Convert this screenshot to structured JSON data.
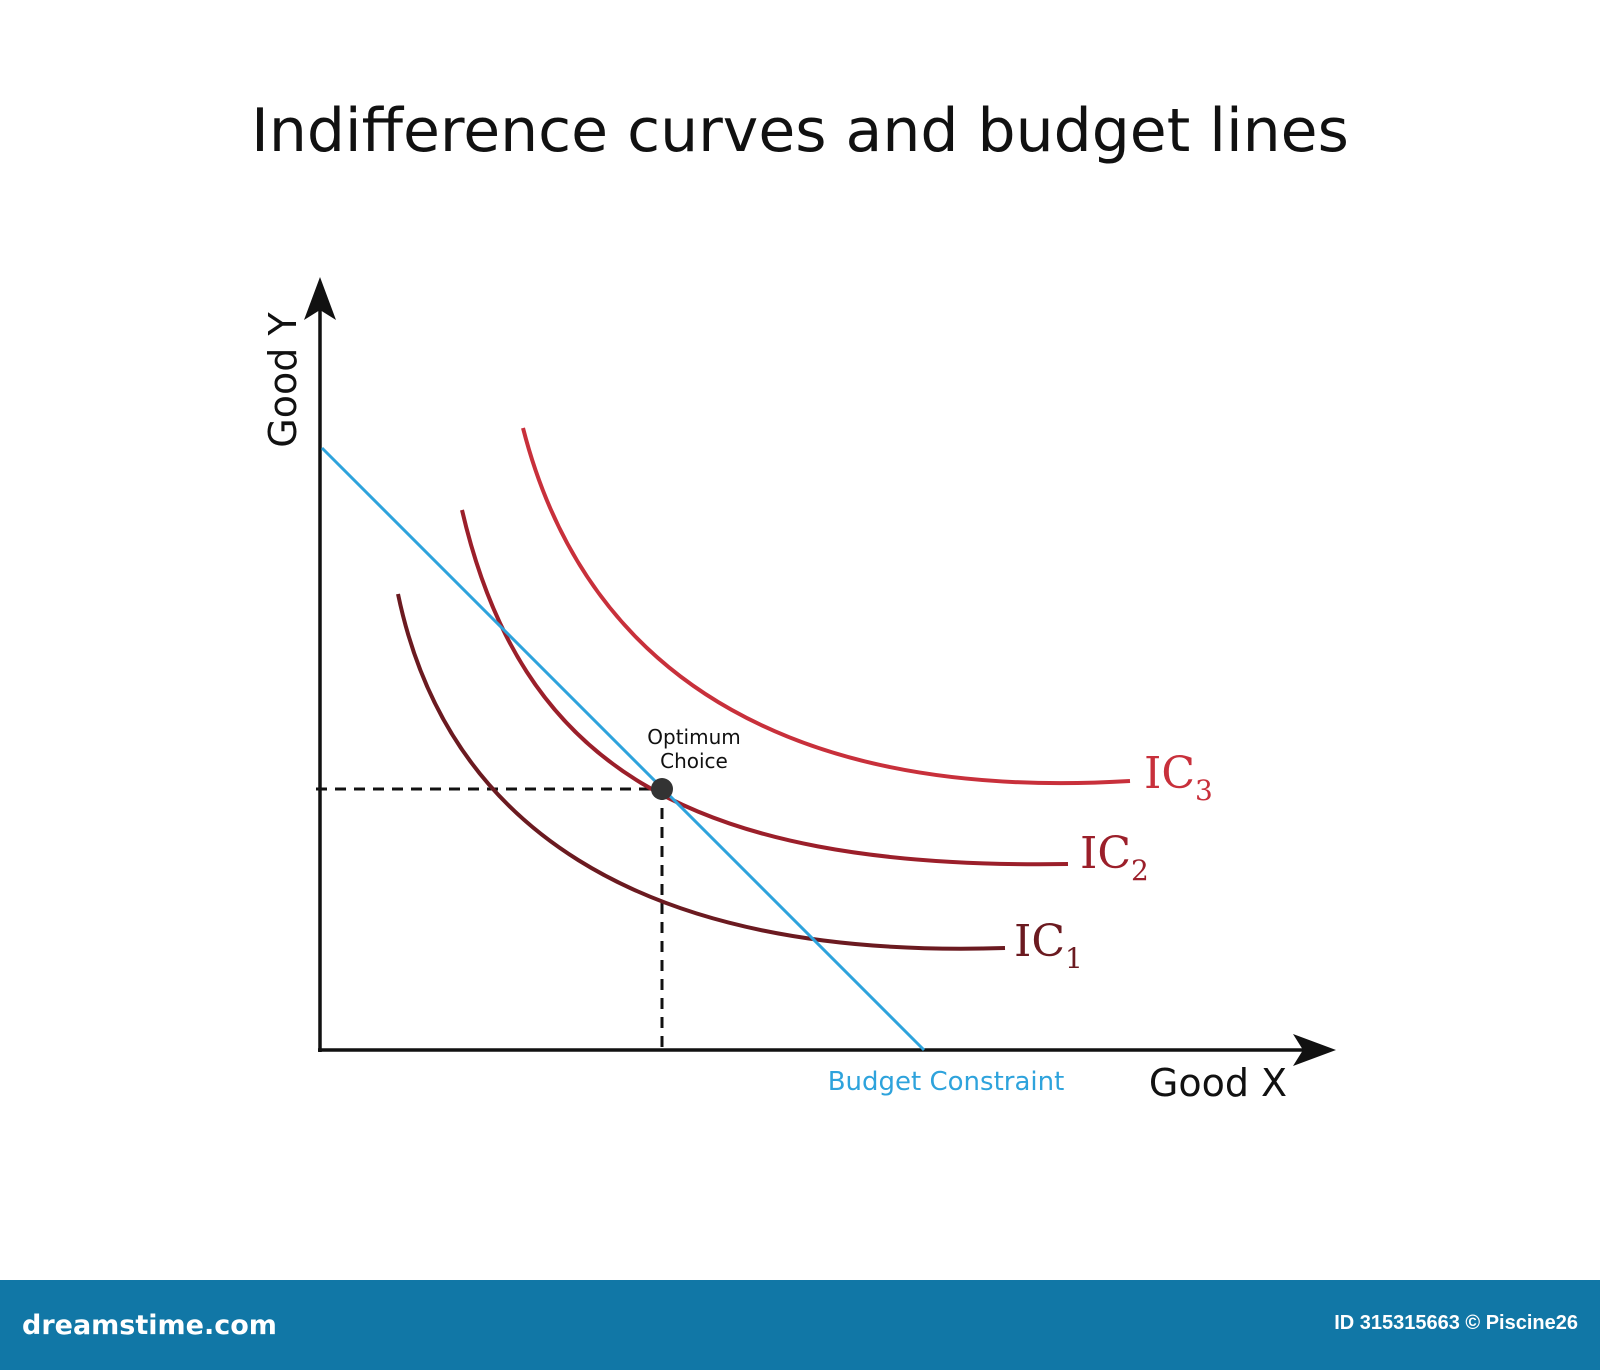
{
  "title": "Indifference curves and budget lines",
  "axes": {
    "y_label": "Good Y",
    "x_label": "Good X"
  },
  "curves": [
    {
      "id": "ic1",
      "label_main": "IC",
      "label_sub": "1",
      "color": "#6b1a20"
    },
    {
      "id": "ic2",
      "label_main": "IC",
      "label_sub": "2",
      "color": "#9b1f2a"
    },
    {
      "id": "ic3",
      "label_main": "IC",
      "label_sub": "3",
      "color": "#c8303b"
    }
  ],
  "budget": {
    "label": "Budget Constraint",
    "color": "#2ea3dc"
  },
  "optimum": {
    "label_line1": "Optimum",
    "label_line2": "Choice"
  },
  "footer": {
    "brand": "dreamstime.com",
    "image_id": "ID 315315663 © Piscine26"
  }
}
